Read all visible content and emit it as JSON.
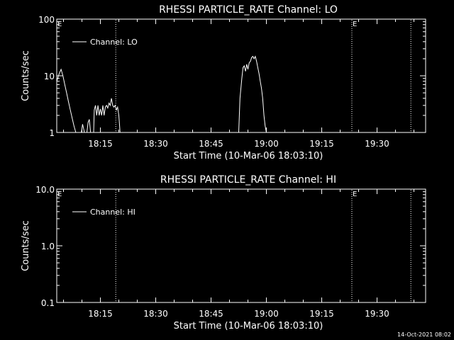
{
  "chart_data": [
    {
      "type": "line",
      "title": "RHESSI PARTICLE_RATE Channel: LO",
      "xlabel": "Start Time (10-Mar-06 18:03:10)",
      "ylabel": "Counts/sec",
      "y_scale": "log",
      "ylim": [
        1,
        100
      ],
      "xlim": [
        "18:03:10",
        "19:43:10"
      ],
      "x_tick_labels": [
        "18:15",
        "18:30",
        "18:45",
        "19:00",
        "19:15",
        "19:30"
      ],
      "y_tick_labels": [
        "1",
        "10",
        "100"
      ],
      "legend": {
        "placement": "top-left",
        "entries": [
          "Channel: LO"
        ]
      },
      "grid": false,
      "markers": [
        {
          "time": "18:19:10",
          "style": "dotted",
          "label": ""
        },
        {
          "time": "19:23:10",
          "style": "dotted",
          "label": "E"
        },
        {
          "time": "19:39:10",
          "style": "dotted",
          "label": ""
        },
        {
          "time": "18:03:10",
          "style": "none",
          "label": "E"
        }
      ],
      "series": [
        {
          "name": "Channel: LO",
          "x": [
            "18:03:10",
            "18:03:50",
            "18:04:20",
            "18:04:50",
            "18:05:20",
            "18:05:50",
            "18:06:20",
            "18:06:50",
            "18:07:20",
            "18:07:50",
            "18:08:20",
            null,
            "18:09:50",
            "18:10:10",
            "18:10:40",
            null,
            "18:11:20",
            "18:11:40",
            "18:12:00",
            "18:12:20",
            null,
            "18:13:10",
            "18:13:20",
            "18:13:40",
            "18:14:00",
            "18:14:20",
            "18:14:40",
            "18:15:00",
            "18:15:20",
            "18:15:40",
            "18:16:00",
            "18:16:20",
            "18:16:40",
            "18:17:00",
            "18:17:20",
            "18:17:40",
            "18:18:00",
            "18:18:20",
            "18:18:40",
            "18:19:00",
            "18:19:20",
            "18:19:40",
            "18:20:00",
            "18:20:20",
            null,
            "18:52:30",
            "18:52:50",
            "18:53:20",
            "18:53:40",
            "18:54:00",
            "18:54:20",
            "18:54:40",
            "18:55:00",
            "18:55:20",
            "18:55:40",
            "18:56:00",
            "18:56:20",
            "18:56:40",
            "18:57:00",
            "18:57:20",
            "18:57:40",
            "18:58:00",
            "18:58:20",
            "18:58:40",
            "18:59:00",
            "18:59:20",
            "18:59:40",
            "19:00:00"
          ],
          "y": [
            8,
            11,
            13,
            10,
            7,
            5,
            3.5,
            2.5,
            1.8,
            1.3,
            1,
            null,
            1,
            1.4,
            1,
            null,
            1,
            1.5,
            1.7,
            1,
            null,
            1,
            2.5,
            3,
            2,
            3,
            2,
            2.6,
            2,
            3,
            2,
            2.8,
            3,
            2.7,
            3.3,
            3,
            4,
            3,
            2.8,
            3,
            2.5,
            2.8,
            2,
            1,
            null,
            1,
            4,
            9,
            14,
            15,
            12,
            16,
            13,
            17,
            18,
            21,
            22,
            20,
            22,
            18,
            14,
            11,
            8,
            6,
            4,
            2,
            1.3,
            1
          ]
        }
      ]
    },
    {
      "type": "line",
      "title": "RHESSI PARTICLE_RATE Channel: HI",
      "xlabel": "Start Time (10-Mar-06 18:03:10)",
      "ylabel": "Counts/sec",
      "y_scale": "log",
      "ylim": [
        0.1,
        10
      ],
      "xlim": [
        "18:03:10",
        "19:43:10"
      ],
      "x_tick_labels": [
        "18:15",
        "18:30",
        "18:45",
        "19:00",
        "19:15",
        "19:30"
      ],
      "y_tick_labels": [
        "0.1",
        "1.0",
        "10.0"
      ],
      "legend": {
        "placement": "top-left",
        "entries": [
          "Channel: HI"
        ]
      },
      "grid": false,
      "markers": [
        {
          "time": "18:19:10",
          "style": "dotted",
          "label": ""
        },
        {
          "time": "19:23:10",
          "style": "dotted",
          "label": "E"
        },
        {
          "time": "19:39:10",
          "style": "dotted",
          "label": ""
        },
        {
          "time": "18:03:10",
          "style": "none",
          "label": "E"
        }
      ],
      "series": [
        {
          "name": "Channel: HI",
          "x": [],
          "y": []
        }
      ]
    }
  ],
  "footer": {
    "timestamp": "14-Oct-2021 08:02"
  },
  "colors": {
    "background": "#000000",
    "foreground": "#ffffff"
  }
}
